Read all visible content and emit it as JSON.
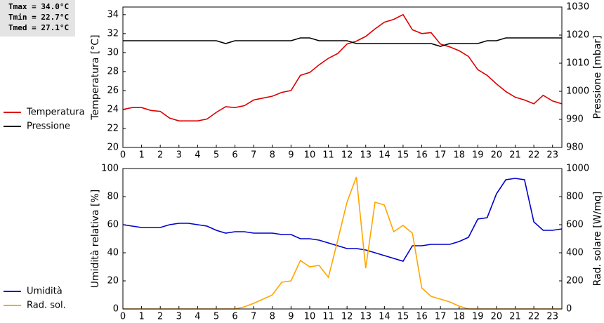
{
  "chart_data": [
    {
      "type": "line",
      "annotations": [
        "Tmax = 34.0°C",
        "Tmin = 22.7°C",
        "Tmed = 27.1°C"
      ],
      "ylabel": "Temperatura [°C]",
      "y2label": "Pressione [mbar]",
      "x": [
        0,
        0.5,
        1,
        1.5,
        2,
        2.5,
        3,
        3.5,
        4,
        4.5,
        5,
        5.5,
        6,
        6.5,
        7,
        7.5,
        8,
        8.5,
        9,
        9.5,
        10,
        10.5,
        11,
        11.5,
        12,
        12.5,
        13,
        13.5,
        14,
        14.5,
        15,
        15.5,
        16,
        16.5,
        17,
        17.5,
        18,
        18.5,
        19,
        19.5,
        20,
        20.5,
        21,
        21.5,
        22,
        22.5,
        23,
        23.5
      ],
      "xlim": [
        0,
        23.5
      ],
      "xticks": [
        0,
        1,
        2,
        3,
        4,
        5,
        6,
        7,
        8,
        9,
        10,
        11,
        12,
        13,
        14,
        15,
        16,
        17,
        18,
        19,
        20,
        21,
        22,
        23
      ],
      "ylim": [
        20,
        34.8
      ],
      "yticks": [
        20,
        22,
        24,
        26,
        28,
        30,
        32,
        34
      ],
      "y2lim": [
        980,
        1030
      ],
      "y2ticks": [
        980,
        990,
        1000,
        1010,
        1020,
        1030
      ],
      "series": [
        {
          "name": "Temperatura",
          "color": "#dd0000",
          "values": [
            24.0,
            24.2,
            24.2,
            23.9,
            23.8,
            23.1,
            22.8,
            22.8,
            22.8,
            23.0,
            23.7,
            24.3,
            24.2,
            24.4,
            25.0,
            25.2,
            25.4,
            25.8,
            26.0,
            27.6,
            27.9,
            28.7,
            29.4,
            29.9,
            30.9,
            31.2,
            31.7,
            32.5,
            33.2,
            33.5,
            34.0,
            32.4,
            32.0,
            32.1,
            30.9,
            30.6,
            30.2,
            29.6,
            28.2,
            27.6,
            26.7,
            25.9,
            25.3,
            25.0,
            24.6,
            25.5,
            24.9,
            24.6
          ]
        },
        {
          "name": "Pressione",
          "color": "#000000",
          "axis": "y2",
          "values": [
            1018,
            1018,
            1018,
            1018,
            1018,
            1018,
            1018,
            1018,
            1018,
            1018,
            1018,
            1017,
            1018,
            1018,
            1018,
            1018,
            1018,
            1018,
            1018,
            1019,
            1019,
            1018,
            1018,
            1018,
            1018,
            1017,
            1017,
            1017,
            1017,
            1017,
            1017,
            1017,
            1017,
            1017,
            1016,
            1017,
            1017,
            1017,
            1017,
            1018,
            1018,
            1019,
            1019,
            1019,
            1019,
            1019,
            1019,
            1019
          ]
        }
      ]
    },
    {
      "type": "line",
      "ylabel": "Umidità relativa [%]",
      "y2label": "Rad. solare [W/mq]",
      "x": [
        0,
        0.5,
        1,
        1.5,
        2,
        2.5,
        3,
        3.5,
        4,
        4.5,
        5,
        5.5,
        6,
        6.5,
        7,
        7.5,
        8,
        8.5,
        9,
        9.5,
        10,
        10.5,
        11,
        11.5,
        12,
        12.5,
        13,
        13.5,
        14,
        14.5,
        15,
        15.5,
        16,
        16.5,
        17,
        17.5,
        18,
        18.5,
        19,
        19.5,
        20,
        20.5,
        21,
        21.5,
        22,
        22.5,
        23,
        23.5
      ],
      "xlim": [
        0,
        23.5
      ],
      "xticks": [
        0,
        1,
        2,
        3,
        4,
        5,
        6,
        7,
        8,
        9,
        10,
        11,
        12,
        13,
        14,
        15,
        16,
        17,
        18,
        19,
        20,
        21,
        22,
        23
      ],
      "ylim": [
        0,
        100
      ],
      "yticks": [
        0,
        20,
        40,
        60,
        80,
        100
      ],
      "y2lim": [
        0,
        1000
      ],
      "y2ticks": [
        0,
        200,
        400,
        600,
        800,
        1000
      ],
      "series": [
        {
          "name": "Umidità",
          "color": "#0000cc",
          "values": [
            60,
            59,
            58,
            58,
            58,
            60,
            61,
            61,
            60,
            59,
            56,
            54,
            55,
            55,
            54,
            54,
            54,
            53,
            53,
            50,
            50,
            49,
            47,
            45,
            43,
            43,
            42,
            40,
            38,
            36,
            34,
            45,
            45,
            46,
            46,
            46,
            48,
            51,
            64,
            65,
            82,
            92,
            93,
            92,
            62,
            56,
            56,
            57
          ]
        },
        {
          "name": "Rad. sol.",
          "color": "#ffa500",
          "axis": "y2",
          "values": [
            0,
            0,
            0,
            0,
            0,
            0,
            0,
            0,
            0,
            0,
            0,
            0,
            0,
            15,
            40,
            70,
            100,
            190,
            200,
            345,
            300,
            310,
            225,
            490,
            760,
            940,
            290,
            760,
            740,
            550,
            595,
            540,
            150,
            90,
            70,
            50,
            20,
            0,
            0,
            0,
            0,
            0,
            0,
            0,
            0,
            0,
            0,
            0
          ]
        }
      ]
    }
  ]
}
